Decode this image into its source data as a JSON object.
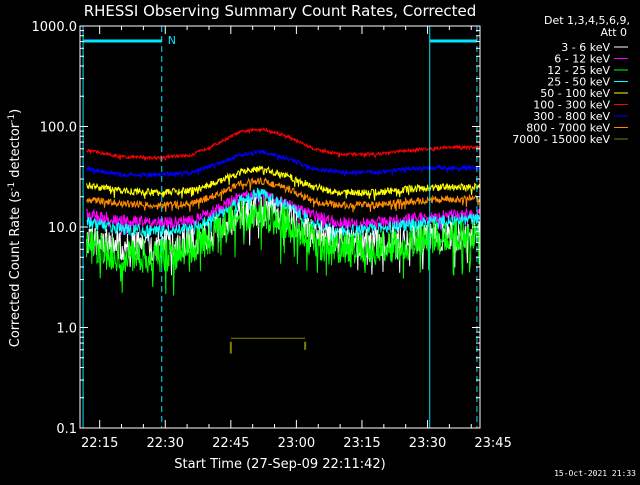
{
  "chart_data": {
    "type": "line",
    "title": "RHESSI Observing Summary Count Rates, Corrected",
    "xlabel": "Start Time (27-Sep-09 22:11:42)",
    "ylabel_main": "Corrected Count Rate (s",
    "ylabel_sup1": "-1",
    "ylabel_mid": " detector",
    "ylabel_sup2": "-1",
    "ylabel_end": ")",
    "y_scale": "log",
    "ylim": [
      0.1,
      1000
    ],
    "xlim_min": [
      10.5,
      102
    ],
    "y_ticks": [
      {
        "v": 1000,
        "label": "1000.0"
      },
      {
        "v": 100,
        "label": "100.0"
      },
      {
        "v": 10,
        "label": "10.0"
      },
      {
        "v": 1,
        "label": "1.0"
      },
      {
        "v": 0.1,
        "label": "0.1"
      }
    ],
    "x_ticks": [
      {
        "m": 15,
        "label": "22:15"
      },
      {
        "m": 30,
        "label": "22:30"
      },
      {
        "m": 45,
        "label": "22:45"
      },
      {
        "m": 60,
        "label": "23:00"
      },
      {
        "m": 75,
        "label": "23:15"
      },
      {
        "m": 90,
        "label": "23:30"
      },
      {
        "m": 105,
        "label": "23:45"
      }
    ],
    "legend_header": [
      "Det 1,3,4,5,6,9,",
      "Att 0"
    ],
    "series": [
      {
        "name": "3 - 6 keV",
        "color": "#ffffff",
        "x": [
          12,
          20,
          28,
          36,
          42,
          47,
          52,
          58,
          64,
          70,
          78,
          86,
          94,
          102
        ],
        "y": [
          7.5,
          6.5,
          6.5,
          7,
          9.5,
          13,
          14.5,
          12.5,
          8.5,
          7,
          7,
          7.5,
          8,
          8.5
        ],
        "noise": 0.3
      },
      {
        "name": "6 - 12 keV",
        "color": "#ff00ff",
        "x": [
          12,
          20,
          28,
          36,
          42,
          47,
          52,
          58,
          64,
          70,
          78,
          86,
          94,
          102
        ],
        "y": [
          13.5,
          11.5,
          11,
          11.5,
          15,
          20,
          21,
          17,
          13,
          11,
          11,
          12,
          13,
          13.5
        ],
        "noise": 0.12
      },
      {
        "name": "12 - 25 keV",
        "color": "#00ff00",
        "x": [
          12,
          20,
          28,
          36,
          42,
          47,
          52,
          58,
          64,
          70,
          78,
          86,
          94,
          102
        ],
        "y": [
          6.5,
          5.2,
          5,
          6,
          9,
          13,
          13.5,
          11,
          7,
          5.8,
          6,
          7,
          8,
          8.5
        ],
        "noise": 0.35
      },
      {
        "name": "25 - 50 keV",
        "color": "#00ffff",
        "x": [
          12,
          20,
          28,
          36,
          42,
          47,
          52,
          58,
          64,
          70,
          78,
          86,
          94,
          102
        ],
        "y": [
          11,
          9.5,
          9,
          9.5,
          13,
          18,
          22,
          16,
          11,
          9,
          9.5,
          10.5,
          11.5,
          12
        ],
        "noise": 0.12
      },
      {
        "name": "50 - 100 keV",
        "color": "#ffff00",
        "x": [
          12,
          20,
          28,
          36,
          42,
          47,
          52,
          58,
          64,
          70,
          78,
          86,
          94,
          102
        ],
        "y": [
          26,
          23,
          22,
          23,
          28,
          35,
          38,
          32,
          25,
          22,
          22,
          24,
          25,
          25
        ],
        "noise": 0.07
      },
      {
        "name": "100 - 300 keV",
        "color": "#ff0000",
        "x": [
          12,
          20,
          28,
          36,
          42,
          47,
          52,
          58,
          64,
          70,
          78,
          86,
          94,
          102
        ],
        "y": [
          58,
          50,
          49,
          52,
          68,
          88,
          95,
          80,
          60,
          53,
          53,
          58,
          62,
          62
        ],
        "noise": 0.03
      },
      {
        "name": "300 - 800 keV",
        "color": "#0000ff",
        "x": [
          12,
          20,
          28,
          36,
          42,
          47,
          52,
          58,
          64,
          70,
          78,
          86,
          94,
          102
        ],
        "y": [
          38,
          33,
          33,
          35,
          43,
          52,
          56,
          48,
          38,
          35,
          35,
          38,
          39,
          39
        ],
        "noise": 0.04
      },
      {
        "name": "800 - 7000 keV",
        "color": "#ff8c00",
        "x": [
          12,
          20,
          28,
          36,
          42,
          47,
          52,
          58,
          64,
          70,
          78,
          86,
          94,
          102
        ],
        "y": [
          19,
          17,
          16.5,
          17,
          21,
          27,
          29,
          24,
          18,
          16.5,
          16.5,
          18,
          19,
          19
        ],
        "noise": 0.07
      },
      {
        "name": "7000 - 15000 keV",
        "color": "#808000",
        "x": [
          45,
          48,
          52,
          56,
          60,
          62
        ],
        "y": [
          0.78,
          0.78,
          0.78,
          0.78,
          0.78,
          0.78
        ],
        "noise": 0
      }
    ],
    "vlines": [
      {
        "m": 11.2,
        "style": "solid"
      },
      {
        "m": 29.2,
        "style": "dashed"
      },
      {
        "m": 90.5,
        "style": "solid"
      },
      {
        "m": 101.3,
        "style": "dashed"
      }
    ],
    "night_bars": [
      {
        "m0": 11.2,
        "m1": 29.2
      },
      {
        "m0": 90.5,
        "m1": 101.3
      }
    ],
    "night_label": "N",
    "colors": {
      "frame": "#ffffff",
      "cyan": "#00e5ff",
      "background": "#000000"
    }
  },
  "timestamp": "15-Oct-2021 21:33"
}
